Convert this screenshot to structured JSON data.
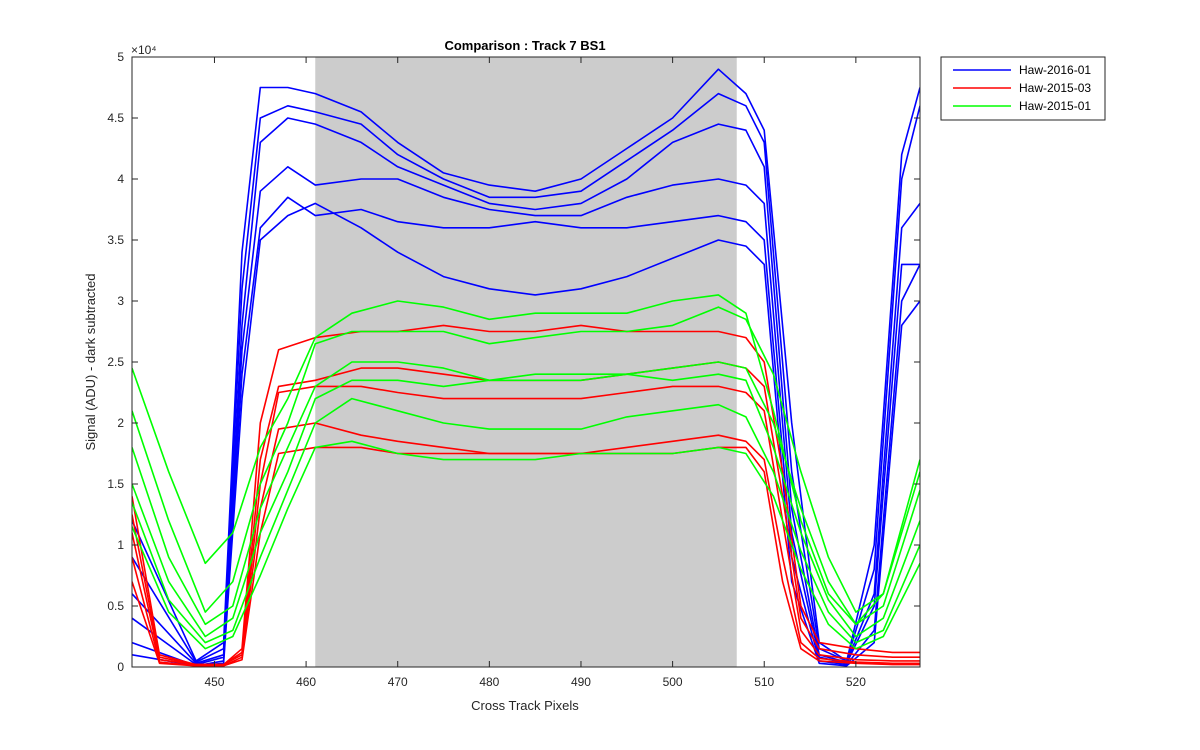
{
  "chart_data": {
    "type": "line",
    "title": "Comparison : Track 7  BS1",
    "xlabel": "Cross Track Pixels",
    "ylabel": "Signal (ADU) - dark subtracted",
    "y_exponent": "×10⁴",
    "xlim": [
      441,
      527
    ],
    "ylim": [
      0,
      5
    ],
    "xticks": [
      450,
      460,
      470,
      480,
      490,
      500,
      510,
      520
    ],
    "yticks": [
      0,
      0.5,
      1,
      1.5,
      2,
      2.5,
      3,
      3.5,
      4,
      4.5,
      5
    ],
    "ytick_labels": [
      "0",
      "0.5",
      "1",
      "1.5",
      "2",
      "2.5",
      "3",
      "3.5",
      "4",
      "4.5",
      "5"
    ],
    "grid": false,
    "legend_position": "outside-top-right",
    "shaded_region": {
      "x_start": 461,
      "x_end": 507,
      "color": "#cccccc"
    },
    "legend": [
      {
        "label": "Haw-2016-01",
        "color": "#0000ff"
      },
      {
        "label": "Haw-2015-03",
        "color": "#ff0000"
      },
      {
        "label": "Haw-2015-01",
        "color": "#00ff00"
      }
    ],
    "series": [
      {
        "group": "Haw-2016-01",
        "color": "#0000ff",
        "x": [
          441,
          448,
          451,
          453,
          455,
          458,
          461,
          466,
          470,
          475,
          480,
          485,
          490,
          495,
          500,
          505,
          508,
          510,
          513,
          516,
          519,
          522,
          525,
          527
        ],
        "y": [
          1.2,
          0.05,
          0.2,
          3.4,
          4.75,
          4.75,
          4.7,
          4.55,
          4.3,
          4.05,
          3.95,
          3.9,
          4.0,
          4.25,
          4.5,
          4.9,
          4.7,
          4.4,
          2.0,
          0.2,
          0.05,
          1.0,
          4.2,
          4.75
        ]
      },
      {
        "group": "Haw-2016-01",
        "color": "#0000ff",
        "x": [
          441,
          448,
          451,
          453,
          455,
          458,
          461,
          466,
          470,
          475,
          480,
          485,
          490,
          495,
          500,
          505,
          508,
          510,
          513,
          516,
          519,
          522,
          525,
          527
        ],
        "y": [
          0.9,
          0.04,
          0.15,
          3.1,
          4.5,
          4.6,
          4.55,
          4.45,
          4.2,
          4.0,
          3.85,
          3.85,
          3.9,
          4.15,
          4.4,
          4.7,
          4.6,
          4.3,
          1.6,
          0.15,
          0.05,
          0.8,
          4.0,
          4.6
        ]
      },
      {
        "group": "Haw-2016-01",
        "color": "#0000ff",
        "x": [
          441,
          448,
          451,
          453,
          455,
          458,
          461,
          466,
          470,
          475,
          480,
          485,
          490,
          495,
          500,
          505,
          508,
          510,
          513,
          516,
          519,
          522,
          525,
          527
        ],
        "y": [
          0.6,
          0.03,
          0.1,
          2.8,
          4.3,
          4.5,
          4.45,
          4.3,
          4.1,
          3.95,
          3.8,
          3.75,
          3.8,
          4.0,
          4.3,
          4.45,
          4.4,
          4.1,
          1.3,
          0.1,
          0.04,
          0.6,
          3.6,
          3.8
        ]
      },
      {
        "group": "Haw-2016-01",
        "color": "#0000ff",
        "x": [
          441,
          448,
          451,
          453,
          455,
          458,
          461,
          466,
          470,
          475,
          480,
          485,
          490,
          495,
          500,
          505,
          508,
          510,
          513,
          516,
          519,
          522,
          525,
          527
        ],
        "y": [
          0.4,
          0.02,
          0.08,
          2.6,
          3.9,
          4.1,
          3.95,
          4.0,
          4.0,
          3.85,
          3.75,
          3.7,
          3.7,
          3.85,
          3.95,
          4.0,
          3.95,
          3.8,
          1.1,
          0.08,
          0.03,
          0.5,
          3.3,
          3.3
        ]
      },
      {
        "group": "Haw-2016-01",
        "color": "#0000ff",
        "x": [
          441,
          448,
          451,
          453,
          455,
          458,
          461,
          466,
          470,
          475,
          480,
          485,
          490,
          495,
          500,
          505,
          508,
          510,
          513,
          516,
          519,
          522,
          525,
          527
        ],
        "y": [
          0.2,
          0.01,
          0.05,
          2.4,
          3.6,
          3.85,
          3.7,
          3.75,
          3.65,
          3.6,
          3.6,
          3.65,
          3.6,
          3.6,
          3.65,
          3.7,
          3.65,
          3.5,
          0.9,
          0.05,
          0.02,
          0.3,
          3.0,
          3.3
        ]
      },
      {
        "group": "Haw-2016-01",
        "color": "#0000ff",
        "x": [
          441,
          448,
          451,
          453,
          455,
          458,
          461,
          466,
          470,
          475,
          480,
          485,
          490,
          495,
          500,
          505,
          508,
          510,
          513,
          516,
          519,
          522,
          525,
          527
        ],
        "y": [
          0.1,
          0.01,
          0.03,
          2.2,
          3.5,
          3.7,
          3.8,
          3.6,
          3.4,
          3.2,
          3.1,
          3.05,
          3.1,
          3.2,
          3.35,
          3.5,
          3.45,
          3.3,
          0.7,
          0.03,
          0.01,
          0.2,
          2.8,
          3.0
        ]
      },
      {
        "group": "Haw-2015-03",
        "color": "#ff0000",
        "x": [
          441,
          444,
          448,
          451,
          453,
          455,
          457,
          461,
          466,
          470,
          475,
          480,
          485,
          490,
          495,
          500,
          505,
          508,
          510,
          512,
          514,
          516,
          520,
          524,
          527
        ],
        "y": [
          1.4,
          0.1,
          0.02,
          0.02,
          0.15,
          2.0,
          2.6,
          2.7,
          2.75,
          2.75,
          2.8,
          2.75,
          2.75,
          2.8,
          2.75,
          2.75,
          2.75,
          2.7,
          2.5,
          1.6,
          0.5,
          0.2,
          0.15,
          0.12,
          0.12
        ]
      },
      {
        "group": "Haw-2015-03",
        "color": "#ff0000",
        "x": [
          441,
          444,
          448,
          451,
          453,
          455,
          457,
          461,
          466,
          470,
          475,
          480,
          485,
          490,
          495,
          500,
          505,
          508,
          510,
          512,
          514,
          516,
          520,
          524,
          527
        ],
        "y": [
          1.25,
          0.08,
          0.02,
          0.02,
          0.12,
          1.7,
          2.3,
          2.35,
          2.45,
          2.45,
          2.4,
          2.35,
          2.35,
          2.35,
          2.4,
          2.45,
          2.5,
          2.45,
          2.3,
          1.4,
          0.4,
          0.15,
          0.1,
          0.08,
          0.08
        ]
      },
      {
        "group": "Haw-2015-03",
        "color": "#ff0000",
        "x": [
          441,
          444,
          448,
          451,
          453,
          455,
          457,
          461,
          466,
          470,
          475,
          480,
          485,
          490,
          495,
          500,
          505,
          508,
          510,
          512,
          514,
          516,
          520,
          524,
          527
        ],
        "y": [
          1.1,
          0.06,
          0.02,
          0.02,
          0.1,
          1.5,
          2.25,
          2.3,
          2.3,
          2.25,
          2.2,
          2.2,
          2.2,
          2.2,
          2.25,
          2.3,
          2.3,
          2.25,
          2.1,
          1.2,
          0.3,
          0.1,
          0.06,
          0.05,
          0.05
        ]
      },
      {
        "group": "Haw-2015-03",
        "color": "#ff0000",
        "x": [
          441,
          444,
          448,
          451,
          453,
          455,
          457,
          461,
          466,
          470,
          475,
          480,
          485,
          490,
          495,
          500,
          505,
          508,
          510,
          512,
          514,
          516,
          520,
          524,
          527
        ],
        "y": [
          0.9,
          0.04,
          0.01,
          0.01,
          0.08,
          1.3,
          1.95,
          2.0,
          1.9,
          1.85,
          1.8,
          1.75,
          1.75,
          1.75,
          1.8,
          1.85,
          1.9,
          1.85,
          1.7,
          0.9,
          0.2,
          0.07,
          0.04,
          0.03,
          0.03
        ]
      },
      {
        "group": "Haw-2015-03",
        "color": "#ff0000",
        "x": [
          441,
          444,
          448,
          451,
          453,
          455,
          457,
          461,
          466,
          470,
          475,
          480,
          485,
          490,
          495,
          500,
          505,
          508,
          510,
          512,
          514,
          516,
          520,
          524,
          527
        ],
        "y": [
          0.7,
          0.03,
          0.01,
          0.01,
          0.06,
          1.1,
          1.75,
          1.8,
          1.8,
          1.75,
          1.75,
          1.75,
          1.75,
          1.75,
          1.75,
          1.75,
          1.8,
          1.8,
          1.6,
          0.7,
          0.15,
          0.05,
          0.03,
          0.02,
          0.02
        ]
      },
      {
        "group": "Haw-2015-01",
        "color": "#00ff00",
        "x": [
          441,
          445,
          449,
          452,
          455,
          458,
          461,
          465,
          470,
          475,
          480,
          485,
          490,
          495,
          500,
          505,
          508,
          511,
          514,
          517,
          520,
          523,
          527
        ],
        "y": [
          2.45,
          1.6,
          0.85,
          1.1,
          1.8,
          2.2,
          2.7,
          2.9,
          3.0,
          2.95,
          2.85,
          2.9,
          2.9,
          2.9,
          3.0,
          3.05,
          2.9,
          2.1,
          1.2,
          0.6,
          0.35,
          0.6,
          1.7
        ]
      },
      {
        "group": "Haw-2015-01",
        "color": "#00ff00",
        "x": [
          441,
          445,
          449,
          452,
          455,
          458,
          461,
          465,
          470,
          475,
          480,
          485,
          490,
          495,
          500,
          505,
          508,
          511,
          514,
          517,
          520,
          523,
          527
        ],
        "y": [
          2.1,
          1.2,
          0.45,
          0.7,
          1.5,
          2.0,
          2.65,
          2.75,
          2.75,
          2.75,
          2.65,
          2.7,
          2.75,
          2.75,
          2.8,
          2.95,
          2.85,
          2.4,
          1.6,
          0.9,
          0.45,
          0.6,
          1.6
        ]
      },
      {
        "group": "Haw-2015-01",
        "color": "#00ff00",
        "x": [
          441,
          445,
          449,
          452,
          455,
          458,
          461,
          465,
          470,
          475,
          480,
          485,
          490,
          495,
          500,
          505,
          508,
          511,
          514,
          517,
          520,
          523,
          527
        ],
        "y": [
          1.8,
          0.9,
          0.35,
          0.5,
          1.3,
          1.8,
          2.3,
          2.5,
          2.5,
          2.45,
          2.35,
          2.4,
          2.4,
          2.4,
          2.45,
          2.5,
          2.45,
          2.0,
          1.3,
          0.7,
          0.35,
          0.5,
          1.45
        ]
      },
      {
        "group": "Haw-2015-01",
        "color": "#00ff00",
        "x": [
          441,
          445,
          449,
          452,
          455,
          458,
          461,
          465,
          470,
          475,
          480,
          485,
          490,
          495,
          500,
          505,
          508,
          511,
          514,
          517,
          520,
          523,
          527
        ],
        "y": [
          1.5,
          0.7,
          0.25,
          0.4,
          1.1,
          1.6,
          2.2,
          2.35,
          2.35,
          2.3,
          2.35,
          2.35,
          2.35,
          2.4,
          2.35,
          2.4,
          2.35,
          1.8,
          1.1,
          0.55,
          0.25,
          0.4,
          1.2
        ]
      },
      {
        "group": "Haw-2015-01",
        "color": "#00ff00",
        "x": [
          441,
          445,
          449,
          452,
          455,
          458,
          461,
          465,
          470,
          475,
          480,
          485,
          490,
          495,
          500,
          505,
          508,
          511,
          514,
          517,
          520,
          523,
          527
        ],
        "y": [
          1.35,
          0.55,
          0.2,
          0.3,
          0.9,
          1.45,
          2.0,
          2.2,
          2.1,
          2.0,
          1.95,
          1.95,
          1.95,
          2.05,
          2.1,
          2.15,
          2.05,
          1.6,
          0.95,
          0.45,
          0.2,
          0.3,
          1.0
        ]
      },
      {
        "group": "Haw-2015-01",
        "color": "#00ff00",
        "x": [
          441,
          445,
          449,
          452,
          455,
          458,
          461,
          465,
          470,
          475,
          480,
          485,
          490,
          495,
          500,
          505,
          508,
          511,
          514,
          517,
          520,
          523,
          527
        ],
        "y": [
          1.15,
          0.45,
          0.15,
          0.25,
          0.75,
          1.3,
          1.8,
          1.85,
          1.75,
          1.7,
          1.7,
          1.7,
          1.75,
          1.75,
          1.75,
          1.8,
          1.75,
          1.4,
          0.8,
          0.35,
          0.15,
          0.25,
          0.85
        ]
      }
    ]
  }
}
